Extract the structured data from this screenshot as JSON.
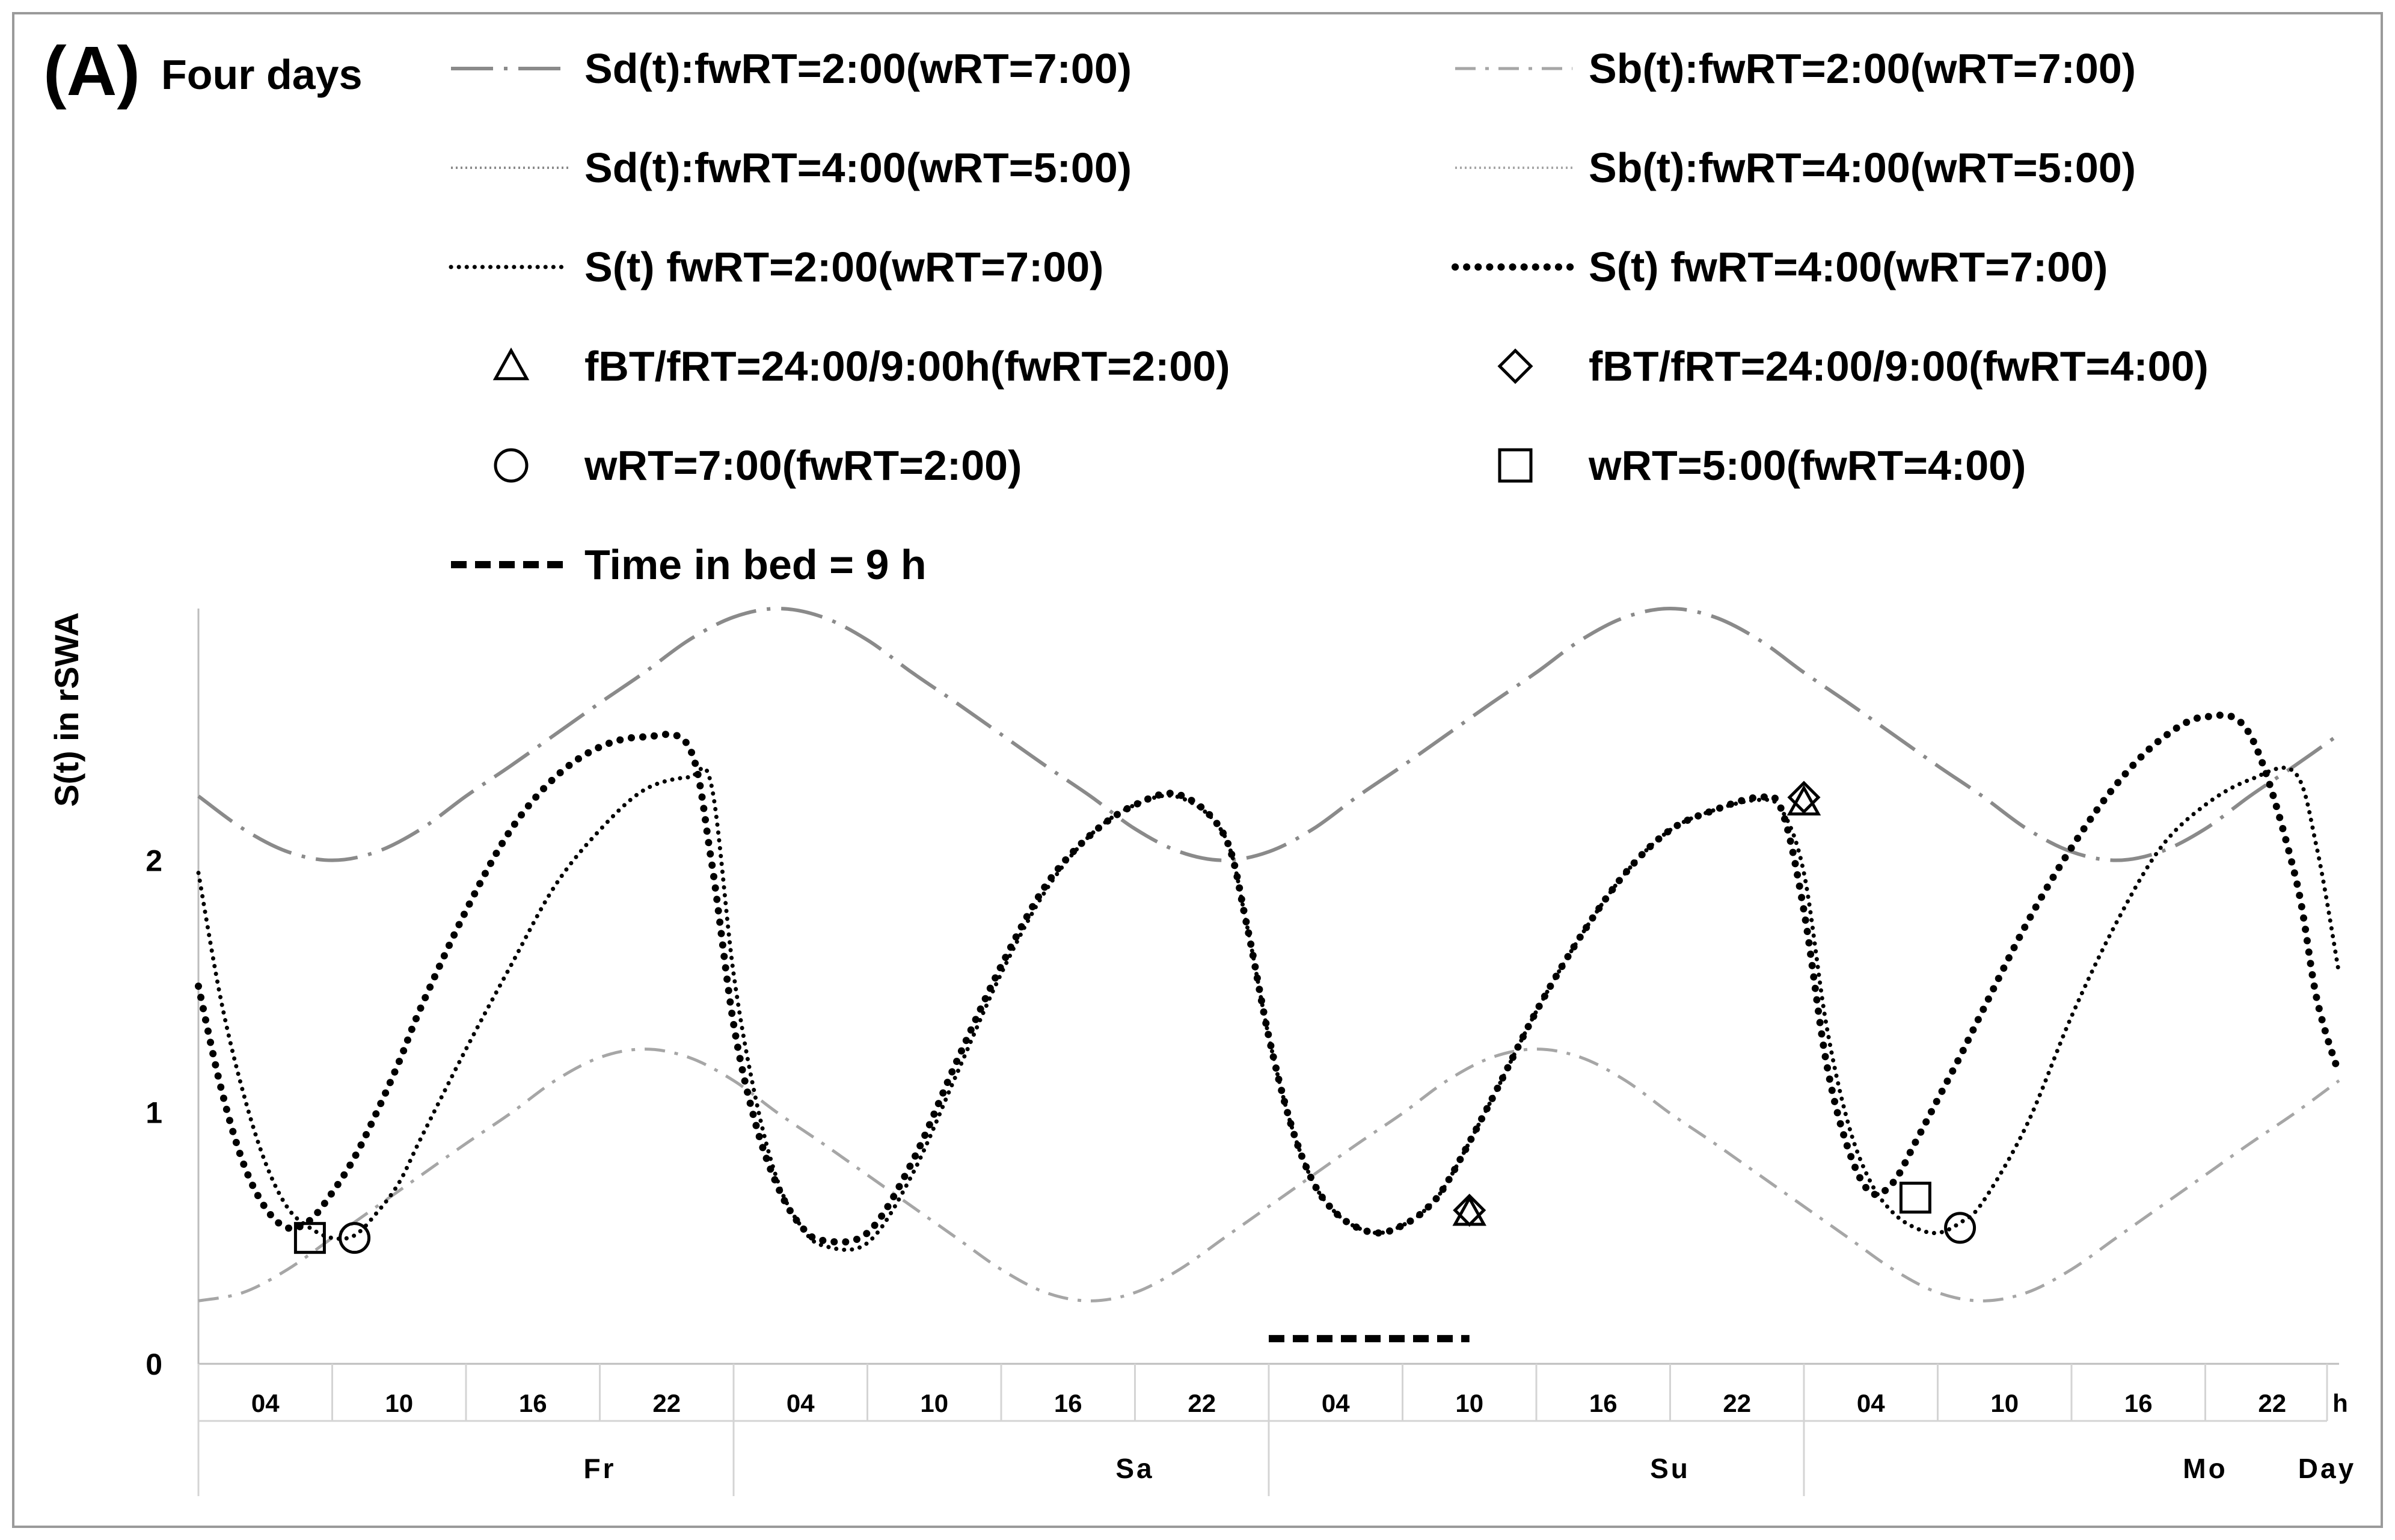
{
  "panel_label": "(A)",
  "title": "Four days",
  "colors": {
    "sd": "#8a8a8a",
    "sb": "#a6a6a6",
    "s": "#000000",
    "frame": "#9a9a9a",
    "grid": "#d4d4d4"
  },
  "chart_data": {
    "type": "line",
    "title": "Four days",
    "ylabel": "S(t) in rSWA",
    "xlabel": "",
    "ylim": [
      0,
      3
    ],
    "yticks": [
      0,
      1,
      2
    ],
    "xlim": [
      0,
      96
    ],
    "grid": false,
    "legend_position": "top",
    "x_tick_labels": [
      "04",
      "10",
      "16",
      "22",
      "04",
      "10",
      "16",
      "22",
      "04",
      "10",
      "16",
      "22",
      "04",
      "10",
      "16",
      "22"
    ],
    "x_unit_label": "h",
    "day_labels": [
      "Fr",
      "Sa",
      "Su",
      "Mo"
    ],
    "day_unit_label": "Day",
    "series": [
      {
        "name": "Sd(t):fwRT=2:00(wRT=7:00)",
        "style": "long-dash",
        "color": "#8a8a8a",
        "x": [
          0,
          2,
          4,
          6,
          8,
          10,
          12,
          14,
          16,
          18,
          20,
          22,
          24,
          26,
          28,
          30,
          32,
          34,
          36,
          38,
          40,
          42,
          44,
          46,
          48,
          50,
          52,
          54,
          56,
          58,
          60,
          62,
          64,
          66,
          68,
          70,
          72,
          74,
          76,
          78,
          80,
          82,
          84,
          86,
          88,
          90,
          92,
          94,
          96
        ],
        "y": [
          2.255,
          2.125,
          2.034,
          2.0,
          2.034,
          2.125,
          2.255,
          2.375,
          2.5,
          2.625,
          2.746,
          2.875,
          2.966,
          3.0,
          2.966,
          2.875,
          2.746,
          2.625,
          2.5,
          2.375,
          2.255,
          2.125,
          2.034,
          2.0,
          2.034,
          2.125,
          2.255,
          2.375,
          2.5,
          2.625,
          2.746,
          2.875,
          2.966,
          3.0,
          2.966,
          2.875,
          2.746,
          2.625,
          2.5,
          2.375,
          2.255,
          2.125,
          2.034,
          2.0,
          2.034,
          2.125,
          2.255,
          2.375,
          2.5
        ]
      },
      {
        "name": "Sb(t):fwRT=2:00(wRT=7:00)",
        "style": "short-dash",
        "color": "#a6a6a6",
        "x": [
          0,
          2,
          4,
          6,
          8,
          10,
          12,
          14,
          16,
          18,
          20,
          22,
          24,
          26,
          28,
          30,
          32,
          34,
          36,
          38,
          40,
          42,
          44,
          46,
          48,
          50,
          52,
          54,
          56,
          58,
          60,
          62,
          64,
          66,
          68,
          70,
          72,
          74,
          76,
          78,
          80,
          82,
          84,
          86,
          88,
          90,
          92,
          94,
          96
        ],
        "y": [
          0.25,
          0.283,
          0.375,
          0.5,
          0.625,
          0.75,
          0.875,
          0.995,
          1.125,
          1.217,
          1.25,
          1.217,
          1.125,
          0.995,
          0.875,
          0.75,
          0.625,
          0.5,
          0.375,
          0.283,
          0.25,
          0.283,
          0.375,
          0.5,
          0.625,
          0.75,
          0.875,
          0.995,
          1.125,
          1.217,
          1.25,
          1.217,
          1.125,
          0.995,
          0.875,
          0.75,
          0.625,
          0.5,
          0.375,
          0.283,
          0.25,
          0.283,
          0.375,
          0.5,
          0.625,
          0.75,
          0.875,
          0.995,
          1.125
        ]
      },
      {
        "name": "Sd(t):fwRT=4:00(wRT=5:00)",
        "style": "fine-dot",
        "color": "#8a8a8a",
        "x": [],
        "y": []
      },
      {
        "name": "Sb(t):fwRT=4:00(wRT=5:00)",
        "style": "fine-dot-light",
        "color": "#a6a6a6",
        "x": [],
        "y": []
      },
      {
        "name": "S(t) fwRT=2:00(wRT=7:00)",
        "style": "small-dot",
        "color": "#000000",
        "x": [
          0,
          1,
          2,
          3,
          4,
          5,
          6,
          7,
          8,
          9,
          10,
          12,
          14,
          16,
          18,
          20,
          22,
          23,
          24,
          25,
          26,
          27,
          28,
          30,
          32,
          34,
          36,
          38,
          40,
          42,
          44,
          46,
          47,
          48,
          49,
          50,
          51,
          52,
          53,
          54,
          55,
          56,
          58,
          60,
          62,
          64,
          66,
          68,
          70,
          71,
          72,
          73,
          74,
          75,
          76,
          77,
          78,
          79,
          80,
          82,
          84,
          86,
          88,
          90,
          92,
          94,
          95,
          96
        ],
        "y": [
          1.95,
          1.45,
          1.08,
          0.8,
          0.62,
          0.54,
          0.5,
          0.51,
          0.6,
          0.72,
          0.9,
          1.25,
          1.58,
          1.9,
          2.12,
          2.28,
          2.33,
          2.3,
          1.55,
          1.05,
          0.72,
          0.55,
          0.47,
          0.48,
          0.75,
          1.15,
          1.55,
          1.88,
          2.1,
          2.22,
          2.25,
          2.1,
          1.75,
          1.3,
          0.95,
          0.72,
          0.6,
          0.54,
          0.52,
          0.55,
          0.61,
          0.72,
          1.05,
          1.4,
          1.7,
          1.95,
          2.12,
          2.2,
          2.24,
          2.2,
          1.95,
          1.35,
          0.95,
          0.72,
          0.6,
          0.54,
          0.52,
          0.56,
          0.64,
          0.95,
          1.38,
          1.75,
          2.05,
          2.22,
          2.32,
          2.35,
          2.05,
          1.55
        ]
      },
      {
        "name": "S(t) fwRT=4:00(wRT=7:00)",
        "style": "large-dot",
        "color": "#000000",
        "x": [
          0,
          1,
          2,
          3,
          4,
          5,
          6,
          7,
          8,
          9,
          10,
          12,
          14,
          16,
          18,
          20,
          22,
          23,
          24,
          25,
          26,
          27,
          28,
          30,
          32,
          34,
          36,
          38,
          40,
          42,
          44,
          46,
          47,
          48,
          49,
          50,
          51,
          52,
          53,
          54,
          55,
          56,
          58,
          60,
          62,
          64,
          66,
          68,
          70,
          71,
          72,
          73,
          74,
          75,
          76,
          77,
          78,
          79,
          80,
          82,
          84,
          86,
          88,
          90,
          92,
          94,
          95,
          96
        ],
        "y": [
          1.5,
          1.1,
          0.8,
          0.62,
          0.54,
          0.57,
          0.68,
          0.82,
          1.0,
          1.2,
          1.42,
          1.8,
          2.12,
          2.33,
          2.45,
          2.49,
          2.45,
          2.0,
          1.35,
          0.95,
          0.7,
          0.55,
          0.49,
          0.52,
          0.8,
          1.2,
          1.58,
          1.9,
          2.1,
          2.22,
          2.26,
          2.1,
          1.75,
          1.3,
          0.95,
          0.72,
          0.6,
          0.54,
          0.52,
          0.55,
          0.61,
          0.72,
          1.05,
          1.4,
          1.7,
          1.95,
          2.12,
          2.2,
          2.25,
          2.2,
          1.8,
          1.2,
          0.85,
          0.68,
          0.72,
          0.88,
          1.05,
          1.22,
          1.4,
          1.75,
          2.05,
          2.3,
          2.48,
          2.57,
          2.5,
          1.95,
          1.45,
          1.15
        ]
      }
    ],
    "markers": [
      {
        "name": "fBT/fRT=24:00/9:00h(fwRT=2:00)",
        "shape": "triangle",
        "points": [
          [
            57,
            0.6
          ],
          [
            72,
            2.23
          ]
        ]
      },
      {
        "name": "fBT/fRT=24:00/9:00(fwRT=4:00)",
        "shape": "diamond",
        "points": [
          [
            57,
            0.61
          ],
          [
            72,
            2.25
          ]
        ]
      },
      {
        "name": "wRT=7:00(fwRT=2:00)",
        "shape": "circle",
        "points": [
          [
            7,
            0.5
          ],
          [
            79,
            0.54
          ]
        ]
      },
      {
        "name": "wRT=5:00(fwRT=4:00)",
        "shape": "square",
        "points": [
          [
            5,
            0.5
          ],
          [
            77,
            0.66
          ]
        ]
      }
    ],
    "time_in_bed": {
      "name": "Time in bed = 9 h",
      "x": [
        48,
        57
      ],
      "y": 0.1
    }
  }
}
